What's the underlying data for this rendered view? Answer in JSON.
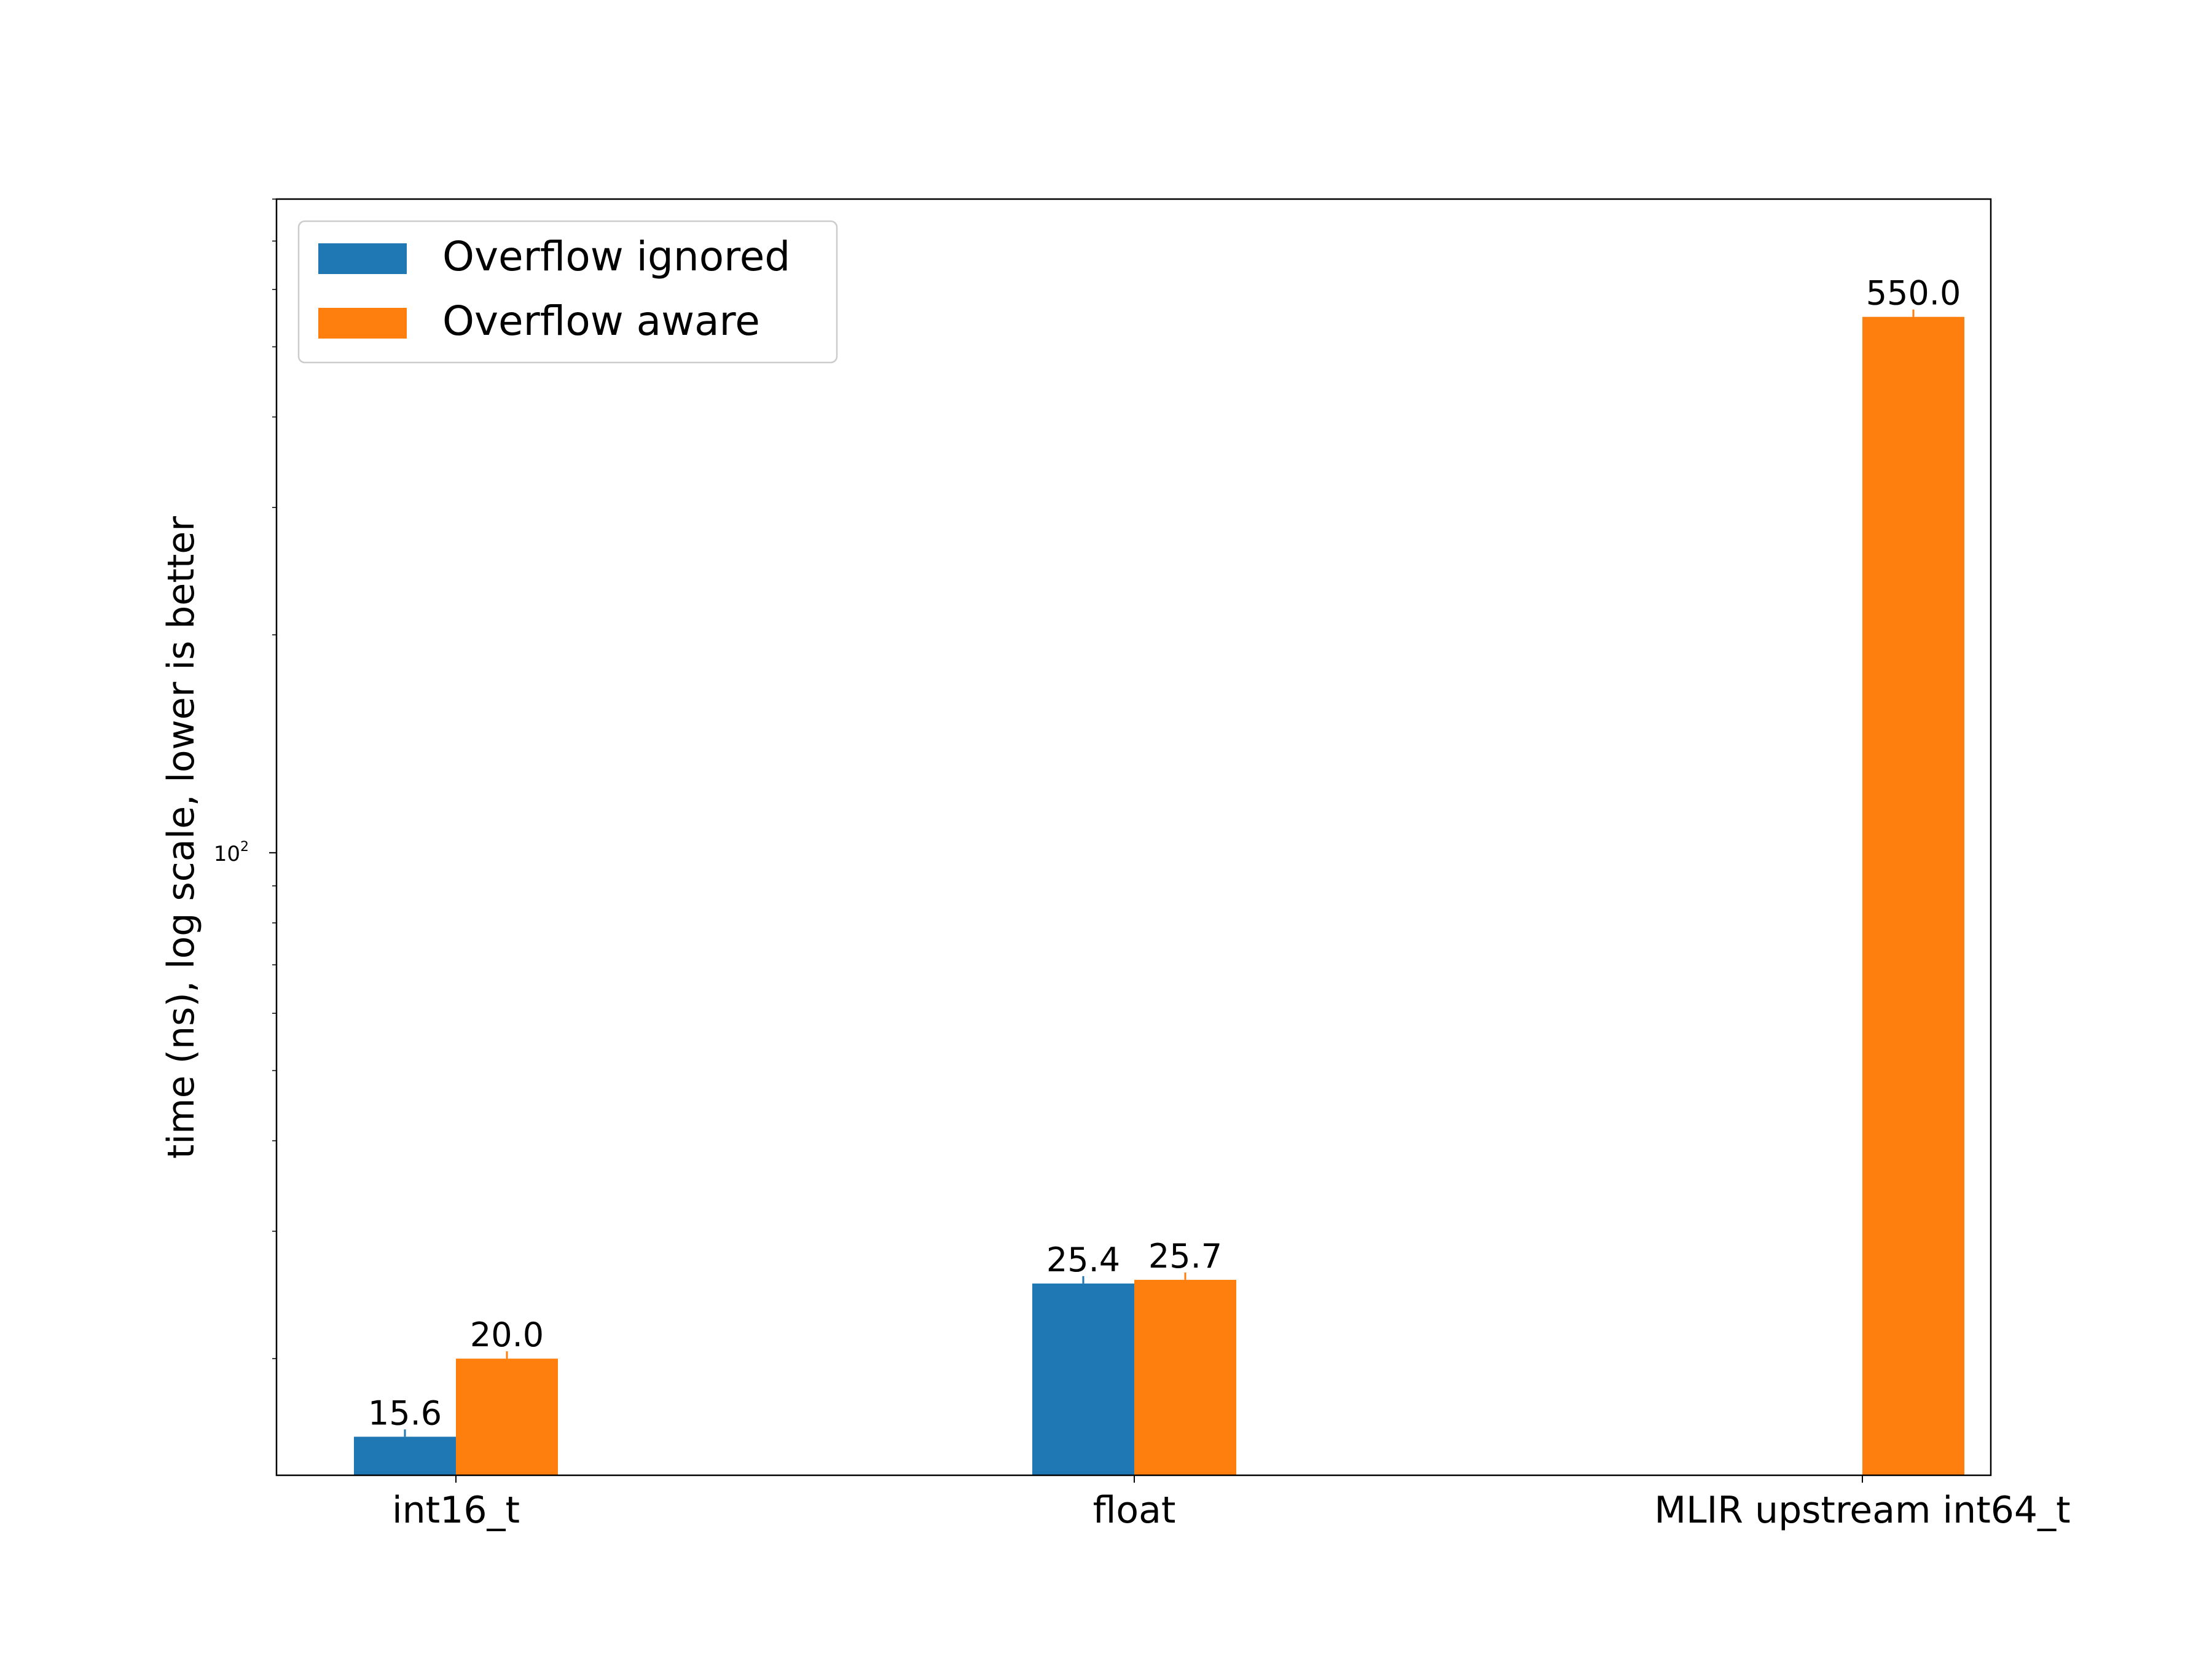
{
  "chart_data": {
    "type": "bar",
    "categories": [
      "int16_t",
      "float",
      "MLIR upstream int64_t"
    ],
    "series": [
      {
        "name": "Overflow ignored",
        "color": "#1f77b4",
        "values": [
          15.6,
          25.4,
          null
        ]
      },
      {
        "name": "Overflow aware",
        "color": "#ff7f0e",
        "values": [
          20.0,
          25.7,
          550.0
        ]
      }
    ],
    "value_labels": [
      [
        "15.6",
        "25.4",
        ""
      ],
      [
        "20.0",
        "25.7",
        "550.0"
      ]
    ],
    "ylabel": "time (ns), log scale, lower is better",
    "yscale": "log",
    "ylim": [
      13.8,
      800
    ],
    "yticks": [
      {
        "value": 100,
        "label": "10",
        "exponent": "2"
      }
    ],
    "legend_position": "upper-left",
    "grid": false
  }
}
